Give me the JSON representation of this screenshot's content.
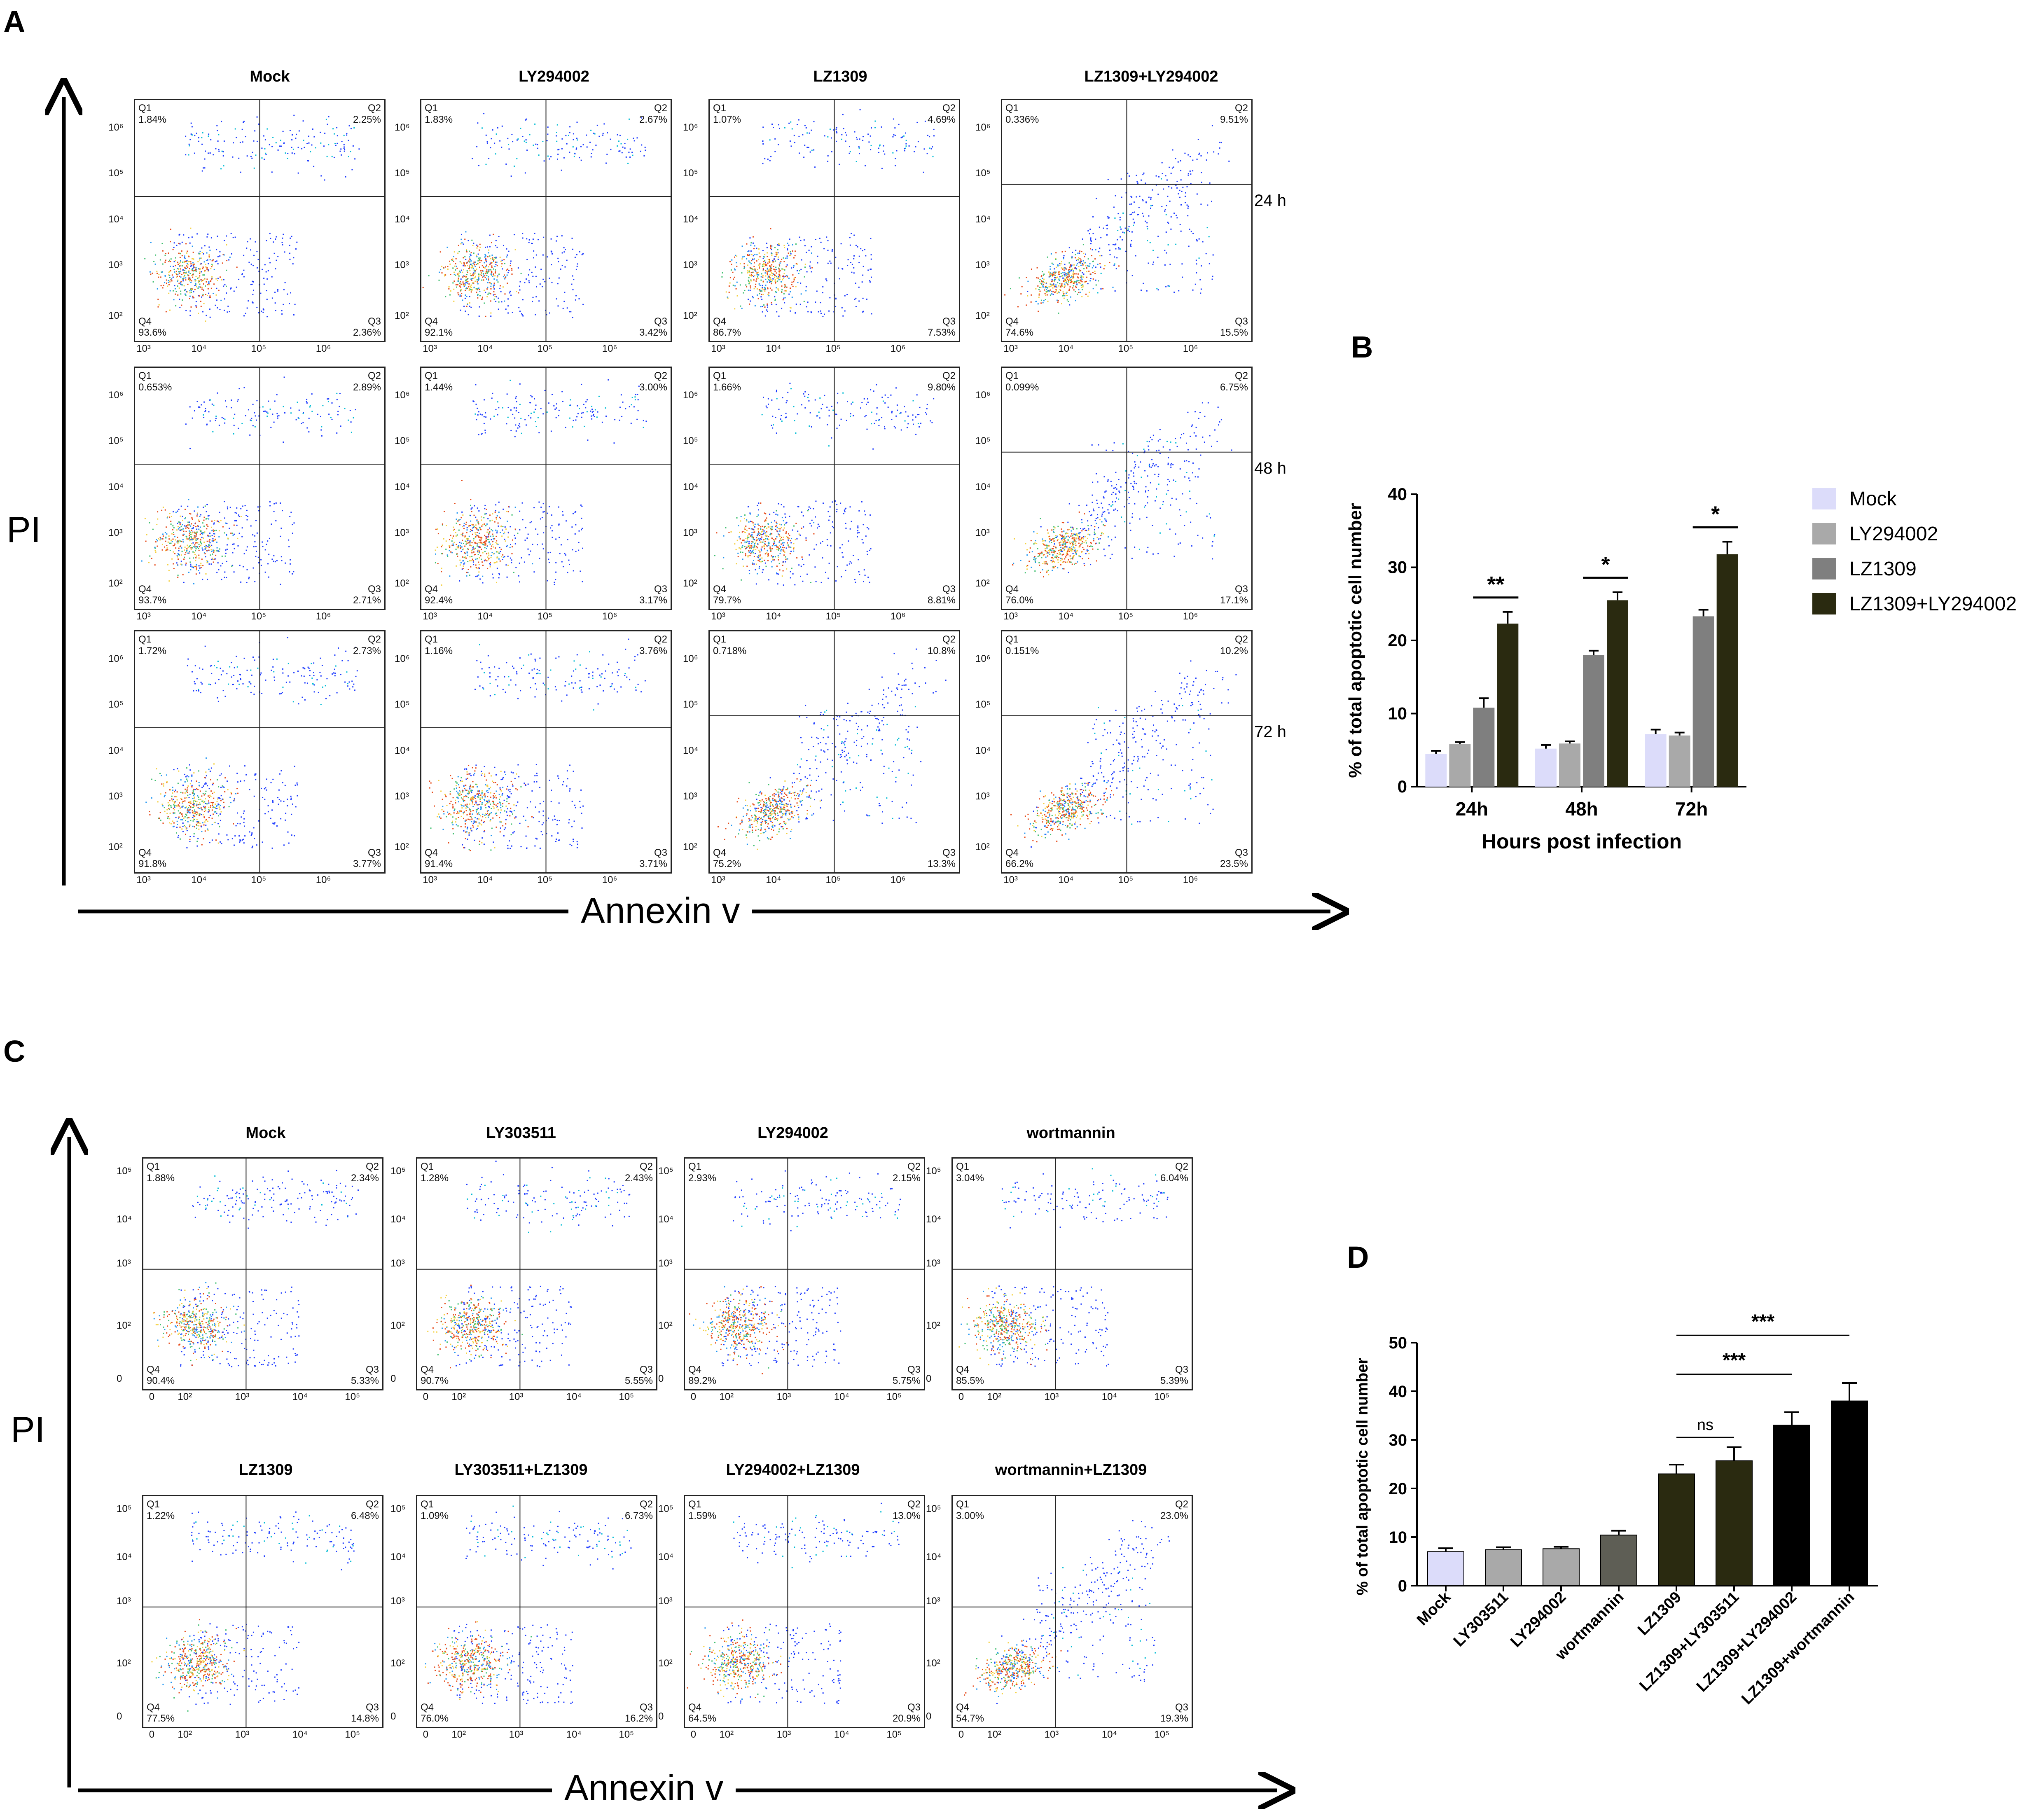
{
  "colors": {
    "mock": "#dcdcfa",
    "ly": "#a9a9a9",
    "lz": "#7f7f7f",
    "combo": "#2a2a10",
    "black": "#000000",
    "wort": "#5e5e55"
  },
  "panel_letters": {
    "a": "A",
    "b": "B",
    "c": "C",
    "d": "D"
  },
  "panel_a": {
    "columns": [
      "Mock",
      "LY294002",
      "LZ1309",
      "LZ1309+LY294002"
    ],
    "rows": [
      "24 h",
      "48 h",
      "72 h"
    ],
    "x_axis_label": "Annexin v",
    "y_axis_label": "PI",
    "plots": [
      [
        {
          "q1": "1.84%",
          "q2": "2.25%",
          "q3": "2.36%",
          "q4": "93.6%"
        },
        {
          "q1": "1.83%",
          "q2": "2.67%",
          "q3": "3.42%",
          "q4": "92.1%"
        },
        {
          "q1": "1.07%",
          "q2": "4.69%",
          "q3": "7.53%",
          "q4": "86.7%"
        },
        {
          "q1": "0.336%",
          "q2": "9.51%",
          "q3": "15.5%",
          "q4": "74.6%"
        }
      ],
      [
        {
          "q1": "0.653%",
          "q2": "2.89%",
          "q3": "2.71%",
          "q4": "93.7%"
        },
        {
          "q1": "1.44%",
          "q2": "3.00%",
          "q3": "3.17%",
          "q4": "92.4%"
        },
        {
          "q1": "1.66%",
          "q2": "9.80%",
          "q3": "8.81%",
          "q4": "79.7%"
        },
        {
          "q1": "0.099%",
          "q2": "6.75%",
          "q3": "17.1%",
          "q4": "76.0%"
        }
      ],
      [
        {
          "q1": "1.72%",
          "q2": "2.73%",
          "q3": "3.77%",
          "q4": "91.8%"
        },
        {
          "q1": "1.16%",
          "q2": "3.76%",
          "q3": "3.71%",
          "q4": "91.4%"
        },
        {
          "q1": "0.718%",
          "q2": "10.8%",
          "q3": "13.3%",
          "q4": "75.2%"
        },
        {
          "q1": "0.151%",
          "q2": "10.2%",
          "q3": "23.5%",
          "q4": "66.2%"
        }
      ]
    ]
  },
  "panel_c": {
    "columns_top": [
      "Mock",
      "LY303511",
      "LY294002",
      "wortmannin"
    ],
    "columns_bottom": [
      "LZ1309",
      "LY303511+LZ1309",
      "LY294002+LZ1309",
      "wortmannin+LZ1309"
    ],
    "x_axis_label": "Annexin v",
    "y_axis_label": "PI",
    "plots": [
      [
        {
          "q1": "1.88%",
          "q2": "2.34%",
          "q3": "5.33%",
          "q4": "90.4%"
        },
        {
          "q1": "1.28%",
          "q2": "2.43%",
          "q3": "5.55%",
          "q4": "90.7%"
        },
        {
          "q1": "2.93%",
          "q2": "2.15%",
          "q3": "5.75%",
          "q4": "89.2%"
        },
        {
          "q1": "3.04%",
          "q2": "6.04%",
          "q3": "5.39%",
          "q4": "85.5%"
        }
      ],
      [
        {
          "q1": "1.22%",
          "q2": "6.48%",
          "q3": "14.8%",
          "q4": "77.5%"
        },
        {
          "q1": "1.09%",
          "q2": "6.73%",
          "q3": "16.2%",
          "q4": "76.0%"
        },
        {
          "q1": "1.59%",
          "q2": "13.0%",
          "q3": "20.9%",
          "q4": "64.5%"
        },
        {
          "q1": "3.00%",
          "q2": "23.0%",
          "q3": "19.3%",
          "q4": "54.7%"
        }
      ]
    ]
  },
  "chart_data": [
    {
      "type": "bar",
      "panel": "B",
      "categories": [
        "24h",
        "48h",
        "72h"
      ],
      "series": [
        {
          "name": "Mock",
          "values": [
            4.5,
            5.2,
            7.2
          ],
          "errors": [
            0.4,
            0.5,
            0.6
          ]
        },
        {
          "name": "LY294002",
          "values": [
            5.8,
            5.9,
            7.0
          ],
          "errors": [
            0.3,
            0.3,
            0.4
          ]
        },
        {
          "name": "LZ1309",
          "values": [
            10.8,
            18.0,
            23.3
          ],
          "errors": [
            1.3,
            0.6,
            0.9
          ]
        },
        {
          "name": "LZ1309+LY294002",
          "values": [
            22.3,
            25.5,
            31.8
          ],
          "errors": [
            1.6,
            1.1,
            1.7
          ]
        }
      ],
      "significance": [
        "**",
        "*",
        "*"
      ],
      "title": "",
      "xlabel": "Hours post infection",
      "ylabel": "% of total apoptotic cell number",
      "ylim": [
        0,
        40
      ],
      "yticks": [
        "0",
        "10",
        "20",
        "30",
        "40"
      ],
      "legend_position": "right"
    },
    {
      "type": "bar",
      "panel": "D",
      "categories": [
        "Mock",
        "LY303511",
        "LY294002",
        "wortmannin",
        "LZ1309",
        "LZ1309+LY303511",
        "LZ1309+LY294002",
        "LZ1309+wortmannin"
      ],
      "values": [
        7.0,
        7.4,
        7.6,
        10.4,
        23.0,
        25.7,
        33.0,
        38.0
      ],
      "errors": [
        0.7,
        0.5,
        0.4,
        0.9,
        1.9,
        2.8,
        2.7,
        3.7
      ],
      "comparisons": [
        {
          "from": "LZ1309",
          "to": "LZ1309+LY303511",
          "label": "ns"
        },
        {
          "from": "LZ1309",
          "to": "LZ1309+LY294002",
          "label": "***"
        },
        {
          "from": "LZ1309",
          "to": "LZ1309+wortmannin",
          "label": "***"
        }
      ],
      "title": "",
      "xlabel": "",
      "ylabel": "% of total apoptotic cell number",
      "ylim": [
        0,
        50
      ],
      "yticks": [
        "0",
        "10",
        "20",
        "30",
        "40",
        "50"
      ]
    }
  ]
}
